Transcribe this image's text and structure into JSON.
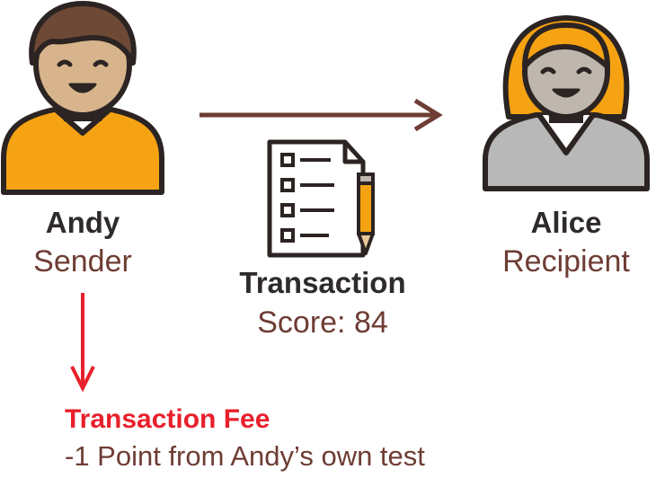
{
  "sender": {
    "name": "Andy",
    "role": "Sender"
  },
  "recipient": {
    "name": "Alice",
    "role": "Recipient"
  },
  "transaction": {
    "title": "Transaction",
    "score": "Score: 84"
  },
  "fee": {
    "title": "Transaction Fee",
    "description": "-1 Point from Andy’s own test"
  },
  "icons": {
    "sender": "person-male-icon",
    "recipient": "person-female-icon",
    "document": "checklist-document-icon",
    "pencil": "pencil-icon",
    "transfer_arrow": "arrow-right-icon",
    "fee_arrow": "arrow-down-icon"
  },
  "colors": {
    "outline": "#2b2422",
    "skin": "#d8b48c",
    "sender_hair": "#6e4a36",
    "sender_shirt": "#f6a313",
    "recipient_hair": "#f6a313",
    "recipient_skin": "#bfb6ae",
    "recipient_shirt": "#b8b8b8",
    "arrow_brown": "#6e3d34",
    "fee_red": "#e8202c",
    "label_dark": "#2e2b2a"
  }
}
